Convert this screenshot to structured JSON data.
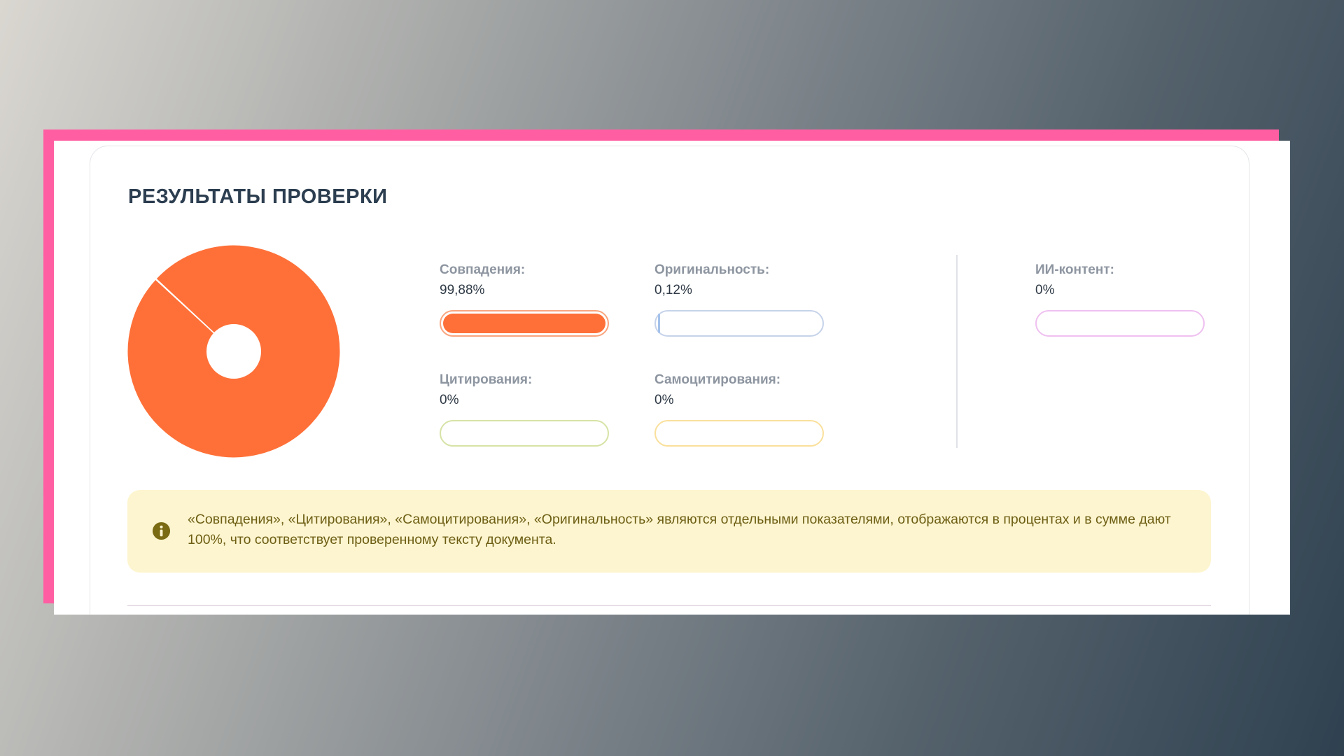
{
  "title": "РЕЗУЛЬТАТЫ ПРОВЕРКИ",
  "pie": {
    "segments": [
      {
        "name": "Совпадения",
        "value": 99.88,
        "color": "#ff7038"
      },
      {
        "name": "Оригинальность",
        "value": 0.12,
        "color": "#a4c2ea"
      }
    ],
    "hole_color": "#ffffff"
  },
  "metrics": {
    "matches": {
      "label": "Совпадения:",
      "value": "99,88%",
      "percent": 99.88,
      "border": "#f9a57f",
      "fill": "#ff7038"
    },
    "originality": {
      "label": "Оригинальность:",
      "value": "0,12%",
      "percent": 0.12,
      "border": "#c6d3ea",
      "fill": "#a4c2ea"
    },
    "citations": {
      "label": "Цитирования:",
      "value": "0%",
      "percent": 0,
      "border": "#d6e3a6",
      "fill": "#c3d76b"
    },
    "self_citations": {
      "label": "Самоцитирования:",
      "value": "0%",
      "percent": 0,
      "border": "#fae09c",
      "fill": "#f7c948"
    },
    "ai_content": {
      "label": "ИИ-контент:",
      "value": "0%",
      "percent": 0,
      "border": "#efc0f0",
      "fill": "#e39be6"
    }
  },
  "notice": {
    "icon": "info-icon",
    "text": "«Совпадения», «Цитирования», «Самоцитирования», «Оригинальность» являются отдельными показателями, отображаются в процентах и в сумме дают 100%, что соответствует проверенному тексту документа."
  }
}
